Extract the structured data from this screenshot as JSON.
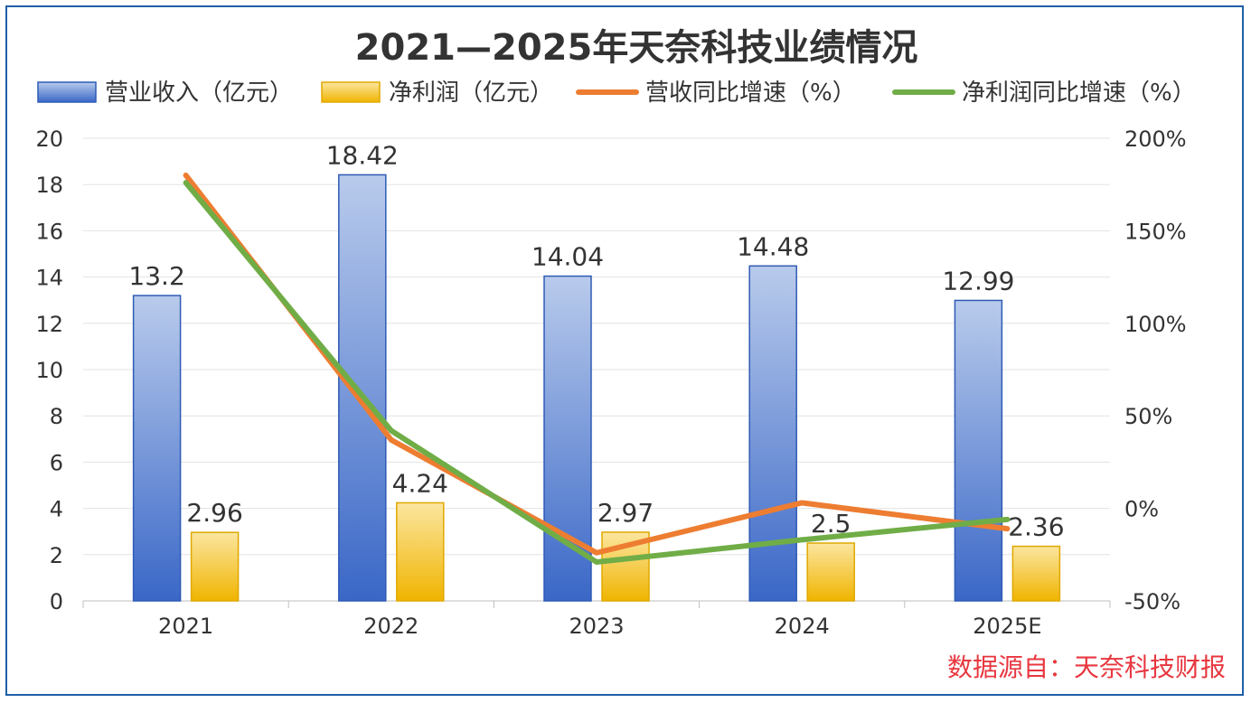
{
  "chart_data": {
    "type": "bar",
    "title": "2021—2025年天奈科技业绩情况",
    "categories": [
      "2021",
      "2022",
      "2023",
      "2024",
      "2025E"
    ],
    "y_left": {
      "range": [
        0,
        20
      ],
      "ticks": [
        "0",
        "2",
        "4",
        "6",
        "8",
        "10",
        "12",
        "14",
        "16",
        "18",
        "20"
      ],
      "tick_values": [
        0,
        2,
        4,
        6,
        8,
        10,
        12,
        14,
        16,
        18,
        20
      ]
    },
    "y_right": {
      "range": [
        -50,
        200
      ],
      "ticks": [
        "-50%",
        "0%",
        "50%",
        "100%",
        "150%",
        "200%"
      ],
      "tick_values": [
        -50,
        0,
        50,
        100,
        150,
        200
      ]
    },
    "series": [
      {
        "name": "营业收入（亿元）",
        "kind": "bar",
        "axis": "left",
        "color": "#4472c4",
        "values": [
          13.2,
          18.42,
          14.04,
          14.48,
          12.99
        ],
        "labels": [
          "13.2",
          "18.42",
          "14.04",
          "14.48",
          "12.99"
        ]
      },
      {
        "name": "净利润（亿元）",
        "kind": "bar",
        "axis": "left",
        "color": "#f2c511",
        "values": [
          2.96,
          4.24,
          2.97,
          2.5,
          2.36
        ],
        "labels": [
          "2.96",
          "4.24",
          "2.97",
          "2.5",
          "2.36"
        ]
      },
      {
        "name": "营收同比增速（%）",
        "kind": "line",
        "axis": "right",
        "color": "#ed7d31",
        "values": [
          180,
          37,
          -24,
          3,
          -11
        ]
      },
      {
        "name": "净利润同比增速（%）",
        "kind": "line",
        "axis": "right",
        "color": "#70ad47",
        "values": [
          176,
          42,
          -29,
          -17,
          -6
        ]
      }
    ],
    "grid": true,
    "legend": "top"
  },
  "source": "数据源自：天奈科技财报"
}
